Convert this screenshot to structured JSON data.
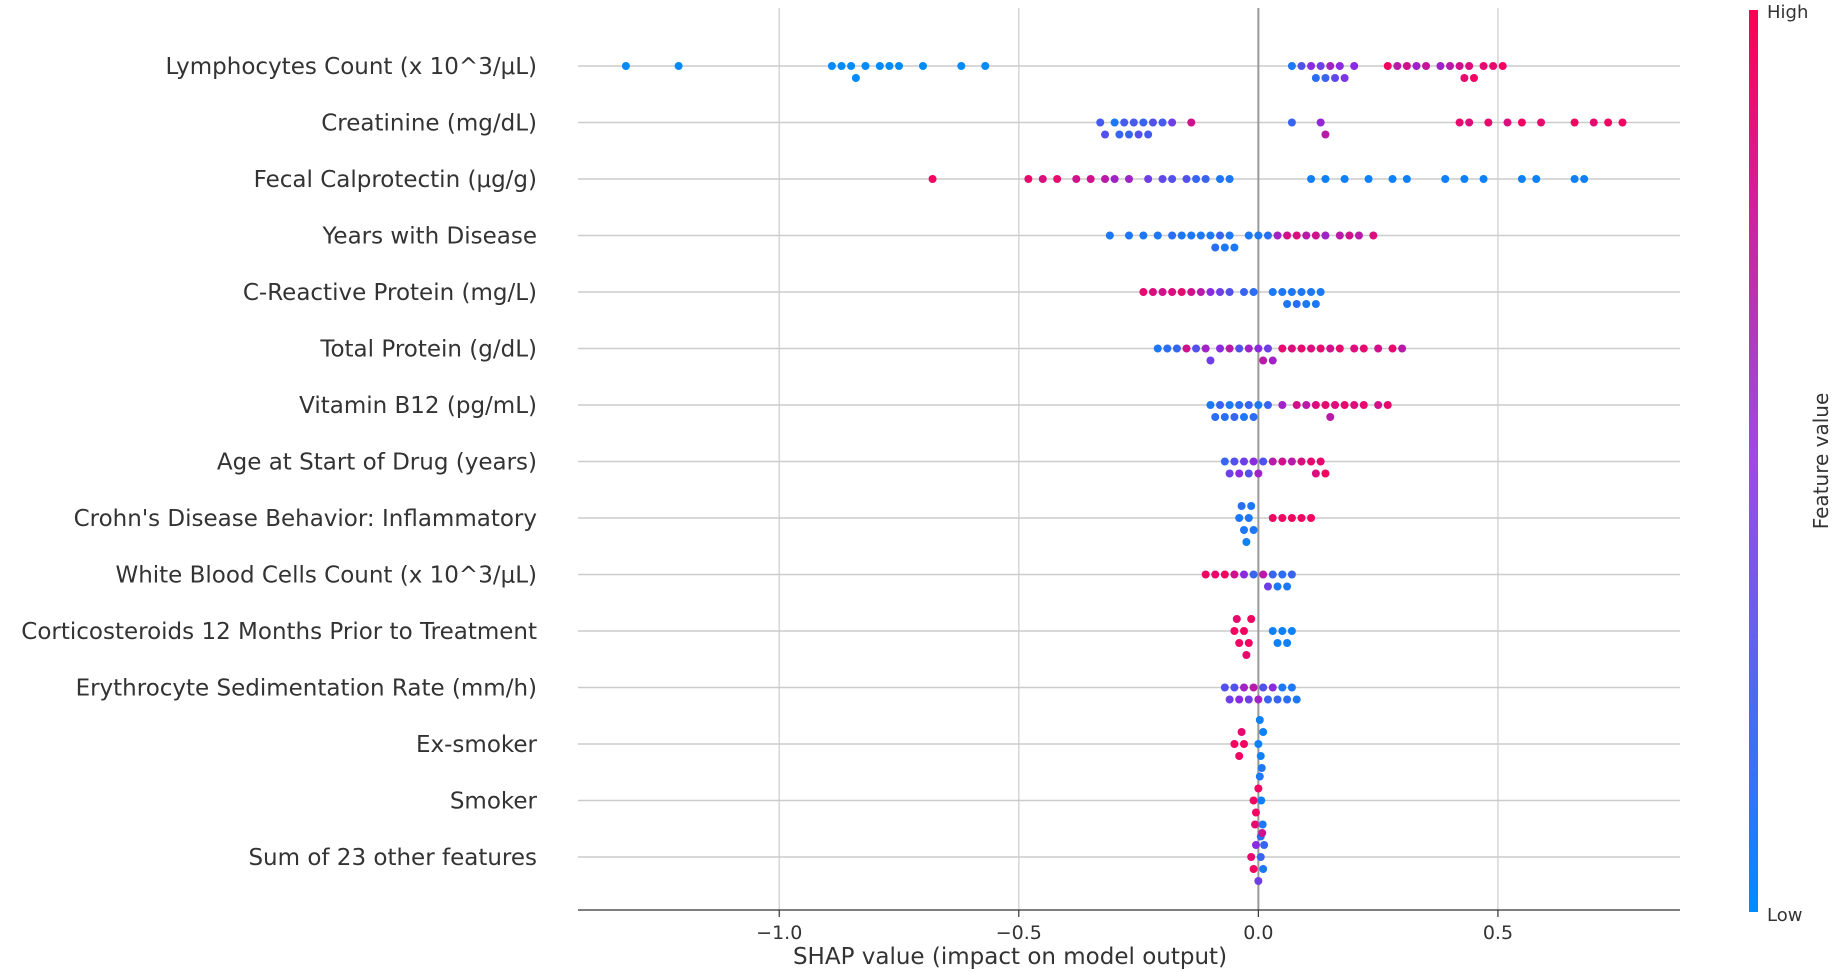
{
  "chart_data": {
    "type": "scatter",
    "subtype": "shap-beeswarm",
    "title": "",
    "xlabel": "SHAP value (impact on model output)",
    "xlim": [
      -1.42,
      0.88
    ],
    "xticks": [
      {
        "value": -1.0,
        "label": "−1.0"
      },
      {
        "value": -0.5,
        "label": "−0.5"
      },
      {
        "value": 0.0,
        "label": "0.0"
      },
      {
        "value": 0.5,
        "label": "0.5"
      }
    ],
    "grid": true,
    "colorbar": {
      "label": "Feature value",
      "high_label": "High",
      "low_label": "Low",
      "low_color": "#008bfb",
      "high_color": "#ff0052"
    },
    "features": [
      {
        "name": "Lymphocytes Count (x 10^3/μL)",
        "points": [
          [
            -1.32,
            0
          ],
          [
            -1.21,
            0
          ],
          [
            -0.89,
            0
          ],
          [
            -0.87,
            0
          ],
          [
            -0.85,
            0
          ],
          [
            -0.84,
            0
          ],
          [
            -0.82,
            0
          ],
          [
            -0.79,
            0
          ],
          [
            -0.77,
            0
          ],
          [
            -0.75,
            0
          ],
          [
            -0.7,
            0
          ],
          [
            -0.62,
            0
          ],
          [
            -0.57,
            0
          ],
          [
            0.07,
            0.1
          ],
          [
            0.09,
            0.3
          ],
          [
            0.11,
            0.5
          ],
          [
            0.12,
            0.15
          ],
          [
            0.13,
            0.4
          ],
          [
            0.14,
            0.2
          ],
          [
            0.15,
            0.6
          ],
          [
            0.16,
            0.35
          ],
          [
            0.17,
            0.5
          ],
          [
            0.18,
            0.45
          ],
          [
            0.2,
            0.5
          ],
          [
            0.27,
            0.95
          ],
          [
            0.29,
            0.7
          ],
          [
            0.31,
            0.8
          ],
          [
            0.33,
            0.6
          ],
          [
            0.35,
            0.75
          ],
          [
            0.38,
            0.6
          ],
          [
            0.4,
            0.7
          ],
          [
            0.42,
            0.8
          ],
          [
            0.43,
            0.9
          ],
          [
            0.44,
            0.85
          ],
          [
            0.45,
            0.95
          ],
          [
            0.47,
            0.9
          ],
          [
            0.49,
            0.9
          ],
          [
            0.51,
            0.95
          ]
        ]
      },
      {
        "name": "Creatinine (mg/dL)",
        "points": [
          [
            -0.33,
            0.25
          ],
          [
            -0.32,
            0.3
          ],
          [
            -0.3,
            0.1
          ],
          [
            -0.29,
            0.2
          ],
          [
            -0.28,
            0.25
          ],
          [
            -0.27,
            0.2
          ],
          [
            -0.26,
            0.25
          ],
          [
            -0.25,
            0.3
          ],
          [
            -0.24,
            0.2
          ],
          [
            -0.23,
            0.25
          ],
          [
            -0.22,
            0.3
          ],
          [
            -0.2,
            0.25
          ],
          [
            -0.18,
            0.4
          ],
          [
            -0.14,
            0.8
          ],
          [
            0.07,
            0.2
          ],
          [
            0.13,
            0.55
          ],
          [
            0.14,
            0.7
          ],
          [
            0.42,
            0.9
          ],
          [
            0.44,
            0.85
          ],
          [
            0.48,
            0.9
          ],
          [
            0.52,
            0.85
          ],
          [
            0.55,
            0.95
          ],
          [
            0.59,
            0.9
          ],
          [
            0.66,
            0.95
          ],
          [
            0.7,
            0.9
          ],
          [
            0.73,
            0.95
          ],
          [
            0.76,
            0.95
          ]
        ]
      },
      {
        "name": "Fecal Calprotectin (μg/g)",
        "points": [
          [
            -0.68,
            0.95
          ],
          [
            -0.48,
            0.9
          ],
          [
            -0.45,
            0.85
          ],
          [
            -0.42,
            0.9
          ],
          [
            -0.38,
            0.8
          ],
          [
            -0.35,
            0.8
          ],
          [
            -0.32,
            0.7
          ],
          [
            -0.3,
            0.6
          ],
          [
            -0.27,
            0.6
          ],
          [
            -0.23,
            0.4
          ],
          [
            -0.2,
            0.35
          ],
          [
            -0.18,
            0.3
          ],
          [
            -0.15,
            0.3
          ],
          [
            -0.13,
            0.2
          ],
          [
            -0.11,
            0.2
          ],
          [
            -0.08,
            0.1
          ],
          [
            -0.06,
            0.1
          ],
          [
            0.11,
            0.05
          ],
          [
            0.14,
            0.05
          ],
          [
            0.18,
            0.05
          ],
          [
            0.23,
            0.05
          ],
          [
            0.28,
            0.05
          ],
          [
            0.31,
            0.05
          ],
          [
            0.39,
            0.05
          ],
          [
            0.43,
            0.05
          ],
          [
            0.47,
            0.05
          ],
          [
            0.55,
            0.05
          ],
          [
            0.58,
            0.05
          ],
          [
            0.66,
            0.05
          ],
          [
            0.68,
            0.05
          ]
        ]
      },
      {
        "name": "Years with Disease",
        "points": [
          [
            -0.31,
            0.1
          ],
          [
            -0.27,
            0.1
          ],
          [
            -0.24,
            0.1
          ],
          [
            -0.21,
            0.1
          ],
          [
            -0.18,
            0.15
          ],
          [
            -0.16,
            0.1
          ],
          [
            -0.14,
            0.1
          ],
          [
            -0.12,
            0.1
          ],
          [
            -0.1,
            0.1
          ],
          [
            -0.09,
            0.15
          ],
          [
            -0.08,
            0.2
          ],
          [
            -0.07,
            0.1
          ],
          [
            -0.06,
            0.1
          ],
          [
            -0.05,
            0.1
          ],
          [
            -0.02,
            0.1
          ],
          [
            0.0,
            0.1
          ],
          [
            0.02,
            0.15
          ],
          [
            0.04,
            0.6
          ],
          [
            0.06,
            0.8
          ],
          [
            0.08,
            0.85
          ],
          [
            0.1,
            0.7
          ],
          [
            0.12,
            0.8
          ],
          [
            0.14,
            0.6
          ],
          [
            0.17,
            0.7
          ],
          [
            0.19,
            0.8
          ],
          [
            0.21,
            0.7
          ],
          [
            0.24,
            0.85
          ]
        ]
      },
      {
        "name": "C-Reactive Protein (mg/L)",
        "points": [
          [
            -0.24,
            0.9
          ],
          [
            -0.22,
            0.85
          ],
          [
            -0.2,
            0.8
          ],
          [
            -0.18,
            0.85
          ],
          [
            -0.16,
            0.9
          ],
          [
            -0.14,
            0.8
          ],
          [
            -0.12,
            0.7
          ],
          [
            -0.1,
            0.5
          ],
          [
            -0.08,
            0.4
          ],
          [
            -0.06,
            0.3
          ],
          [
            -0.03,
            0.2
          ],
          [
            -0.01,
            0.15
          ],
          [
            0.03,
            0.1
          ],
          [
            0.05,
            0.1
          ],
          [
            0.06,
            0.1
          ],
          [
            0.07,
            0.1
          ],
          [
            0.08,
            0.15
          ],
          [
            0.09,
            0.1
          ],
          [
            0.1,
            0.1
          ],
          [
            0.11,
            0.1
          ],
          [
            0.12,
            0.1
          ],
          [
            0.13,
            0.1
          ]
        ]
      },
      {
        "name": "Total Protein (g/dL)",
        "points": [
          [
            -0.21,
            0.1
          ],
          [
            -0.19,
            0.15
          ],
          [
            -0.17,
            0.2
          ],
          [
            -0.15,
            0.8
          ],
          [
            -0.13,
            0.3
          ],
          [
            -0.11,
            0.6
          ],
          [
            -0.1,
            0.4
          ],
          [
            -0.08,
            0.5
          ],
          [
            -0.06,
            0.7
          ],
          [
            -0.04,
            0.3
          ],
          [
            -0.02,
            0.6
          ],
          [
            0.0,
            0.5
          ],
          [
            0.01,
            0.7
          ],
          [
            0.02,
            0.4
          ],
          [
            0.03,
            0.6
          ],
          [
            0.05,
            0.9
          ],
          [
            0.07,
            0.85
          ],
          [
            0.09,
            0.9
          ],
          [
            0.11,
            0.85
          ],
          [
            0.13,
            0.9
          ],
          [
            0.15,
            0.8
          ],
          [
            0.17,
            0.9
          ],
          [
            0.2,
            0.85
          ],
          [
            0.22,
            0.9
          ],
          [
            0.25,
            0.8
          ],
          [
            0.28,
            0.9
          ],
          [
            0.3,
            0.7
          ]
        ]
      },
      {
        "name": "Vitamin B12 (pg/mL)",
        "points": [
          [
            -0.1,
            0.1
          ],
          [
            -0.09,
            0.15
          ],
          [
            -0.08,
            0.2
          ],
          [
            -0.07,
            0.15
          ],
          [
            -0.06,
            0.1
          ],
          [
            -0.05,
            0.2
          ],
          [
            -0.04,
            0.15
          ],
          [
            -0.03,
            0.1
          ],
          [
            -0.02,
            0.2
          ],
          [
            -0.01,
            0.15
          ],
          [
            0.0,
            0.1
          ],
          [
            0.02,
            0.2
          ],
          [
            0.05,
            0.6
          ],
          [
            0.08,
            0.8
          ],
          [
            0.1,
            0.7
          ],
          [
            0.12,
            0.85
          ],
          [
            0.14,
            0.9
          ],
          [
            0.15,
            0.7
          ],
          [
            0.16,
            0.85
          ],
          [
            0.18,
            0.9
          ],
          [
            0.2,
            0.85
          ],
          [
            0.22,
            0.9
          ],
          [
            0.25,
            0.8
          ],
          [
            0.27,
            0.9
          ]
        ]
      },
      {
        "name": "Age at Start of Drug (years)",
        "points": [
          [
            -0.07,
            0.2
          ],
          [
            -0.06,
            0.4
          ],
          [
            -0.05,
            0.3
          ],
          [
            -0.04,
            0.5
          ],
          [
            -0.03,
            0.4
          ],
          [
            -0.02,
            0.3
          ],
          [
            -0.01,
            0.5
          ],
          [
            0.0,
            0.6
          ],
          [
            0.01,
            0.3
          ],
          [
            0.03,
            0.7
          ],
          [
            0.05,
            0.8
          ],
          [
            0.07,
            0.7
          ],
          [
            0.09,
            0.85
          ],
          [
            0.11,
            0.9
          ],
          [
            0.12,
            0.85
          ],
          [
            0.13,
            0.9
          ],
          [
            0.14,
            0.95
          ]
        ]
      },
      {
        "name": "Crohn's Disease Behavior: Inflammatory",
        "points": [
          [
            -0.04,
            0.1
          ],
          [
            -0.03,
            0.1
          ],
          [
            -0.02,
            0.1
          ],
          [
            -0.01,
            0.1
          ],
          [
            -0.035,
            0.15
          ],
          [
            -0.025,
            0.05
          ],
          [
            -0.015,
            0.1
          ],
          [
            0.03,
            0.95
          ],
          [
            0.05,
            0.95
          ],
          [
            0.07,
            0.95
          ],
          [
            0.09,
            0.95
          ],
          [
            0.11,
            0.95
          ]
        ]
      },
      {
        "name": "White Blood Cells Count (x 10^3/μL)",
        "points": [
          [
            -0.11,
            0.95
          ],
          [
            -0.09,
            0.9
          ],
          [
            -0.07,
            0.95
          ],
          [
            -0.05,
            0.8
          ],
          [
            -0.03,
            0.5
          ],
          [
            -0.01,
            0.2
          ],
          [
            0.01,
            0.7
          ],
          [
            0.02,
            0.4
          ],
          [
            0.03,
            0.2
          ],
          [
            0.04,
            0.1
          ],
          [
            0.05,
            0.15
          ],
          [
            0.06,
            0.1
          ],
          [
            0.07,
            0.2
          ]
        ]
      },
      {
        "name": "Corticosteroids 12 Months Prior to Treatment",
        "points": [
          [
            -0.05,
            0.95
          ],
          [
            -0.04,
            0.95
          ],
          [
            -0.03,
            0.95
          ],
          [
            -0.02,
            0.95
          ],
          [
            -0.015,
            0.95
          ],
          [
            -0.045,
            0.9
          ],
          [
            -0.025,
            0.9
          ],
          [
            0.03,
            0.05
          ],
          [
            0.04,
            0.05
          ],
          [
            0.05,
            0.05
          ],
          [
            0.06,
            0.05
          ],
          [
            0.07,
            0.05
          ]
        ]
      },
      {
        "name": "Erythrocyte Sedimentation Rate (mm/h)",
        "points": [
          [
            -0.07,
            0.3
          ],
          [
            -0.06,
            0.4
          ],
          [
            -0.05,
            0.3
          ],
          [
            -0.04,
            0.5
          ],
          [
            -0.03,
            0.6
          ],
          [
            -0.02,
            0.4
          ],
          [
            -0.01,
            0.7
          ],
          [
            0.0,
            0.6
          ],
          [
            0.01,
            0.3
          ],
          [
            0.02,
            0.2
          ],
          [
            0.03,
            0.5
          ],
          [
            0.04,
            0.2
          ],
          [
            0.05,
            0.1
          ],
          [
            0.06,
            0.15
          ],
          [
            0.07,
            0.1
          ],
          [
            0.08,
            0.1
          ]
        ]
      },
      {
        "name": "Ex-smoker",
        "points": [
          [
            -0.05,
            0.95
          ],
          [
            -0.04,
            0.95
          ],
          [
            -0.035,
            0.9
          ],
          [
            -0.03,
            0.95
          ],
          [
            0.0,
            0.05
          ],
          [
            0.005,
            0.05
          ],
          [
            0.01,
            0.05
          ],
          [
            0.007,
            0.1
          ],
          [
            0.003,
            0.05
          ]
        ]
      },
      {
        "name": "Smoker",
        "points": [
          [
            -0.01,
            0.95
          ],
          [
            -0.005,
            0.95
          ],
          [
            0.0,
            0.95
          ],
          [
            -0.007,
            0.9
          ],
          [
            0.003,
            0.1
          ],
          [
            0.006,
            0.05
          ],
          [
            0.009,
            0.1
          ],
          [
            0.005,
            0.15
          ]
        ]
      },
      {
        "name": "Sum of 23 other features",
        "points": [
          [
            -0.015,
            0.9
          ],
          [
            -0.01,
            0.95
          ],
          [
            -0.005,
            0.5
          ],
          [
            0.0,
            0.4
          ],
          [
            0.005,
            0.2
          ],
          [
            0.01,
            0.1
          ],
          [
            0.008,
            0.8
          ],
          [
            0.012,
            0.2
          ]
        ]
      }
    ]
  }
}
